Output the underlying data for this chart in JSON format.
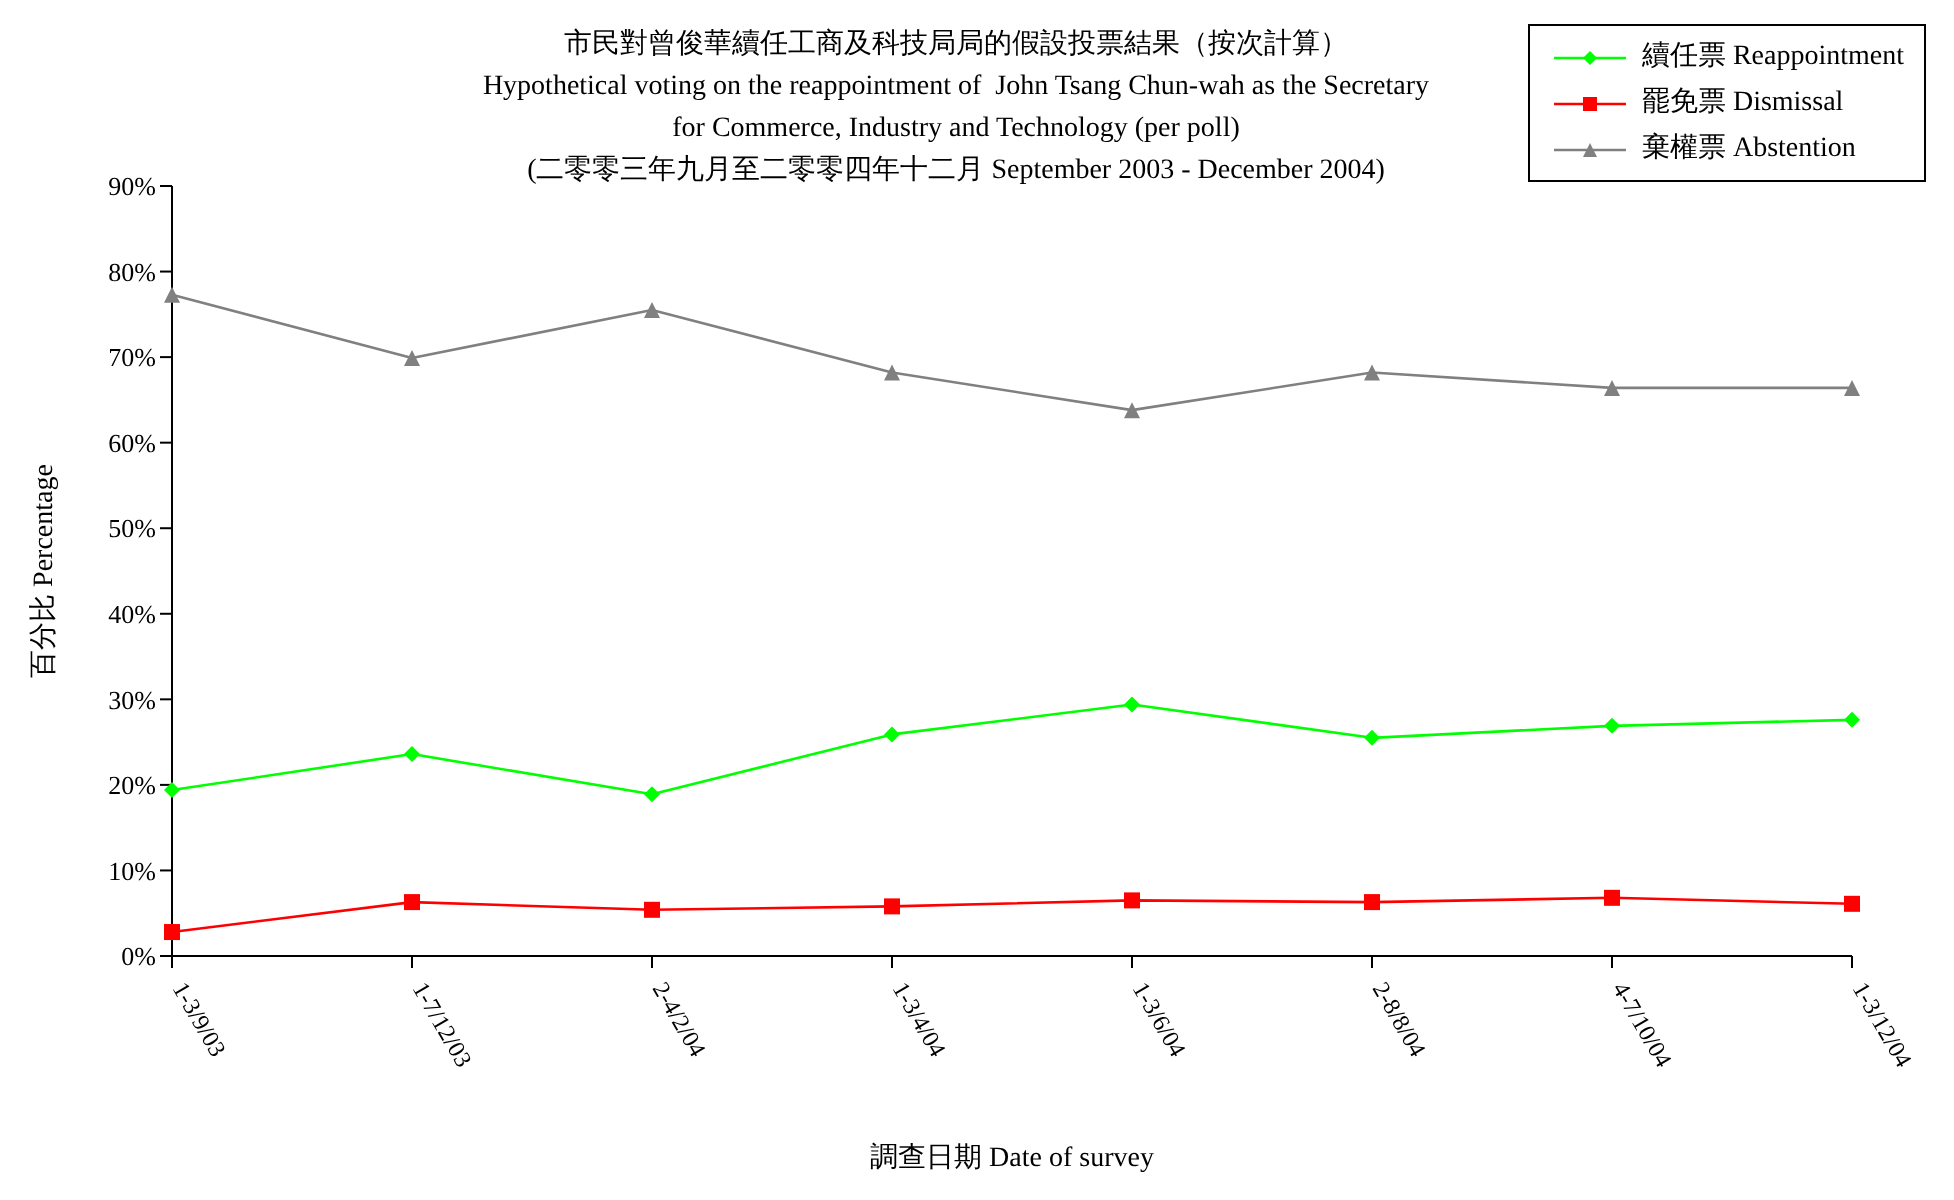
{
  "chart_data": {
    "type": "line",
    "title": "市民對曾俊華續任工商及科技局局的假設投票結果（按次計算）",
    "subtitle": "Hypothetical voting on the reappointment of  John Tsang Chun-wah as the Secretary\nfor Commerce, Industry and Technology (per poll)\n(二零零三年九月至二零零四年十二月 September 2003 - December 2004)",
    "xlabel": "調查日期 Date of survey",
    "ylabel": "百分比 Percentage",
    "categories": [
      "1-3/9/03",
      "1-7/12/03",
      "2-4/2/04",
      "1-3/4/04",
      "1-3/6/04",
      "2-8/8/04",
      "4-7/10/04",
      "1-3/12/04"
    ],
    "series": [
      {
        "name": "續任票 Reappointment",
        "color": "#00ff00",
        "marker": "diamond",
        "values": [
          19.4,
          23.6,
          18.9,
          25.9,
          29.4,
          25.5,
          26.9,
          27.6
        ]
      },
      {
        "name": "罷免票 Dismissal",
        "color": "#ff0000",
        "marker": "square",
        "values": [
          2.8,
          6.3,
          5.4,
          5.8,
          6.5,
          6.3,
          6.8,
          6.1
        ]
      },
      {
        "name": "棄權票 Abstention",
        "color": "#808080",
        "marker": "triangle",
        "values": [
          77.3,
          69.9,
          75.5,
          68.2,
          63.8,
          68.2,
          66.4,
          66.4
        ]
      }
    ],
    "ylim": [
      0,
      90
    ],
    "yticks": [
      {
        "value": 0,
        "label": "0%"
      },
      {
        "value": 10,
        "label": "10%"
      },
      {
        "value": 20,
        "label": "20%"
      },
      {
        "value": 30,
        "label": "30%"
      },
      {
        "value": 40,
        "label": "40%"
      },
      {
        "value": 50,
        "label": "50%"
      },
      {
        "value": 60,
        "label": "60%"
      },
      {
        "value": 70,
        "label": "70%"
      },
      {
        "value": 80,
        "label": "80%"
      },
      {
        "value": 90,
        "label": "90%"
      }
    ],
    "grid": false,
    "legend": "top right"
  }
}
